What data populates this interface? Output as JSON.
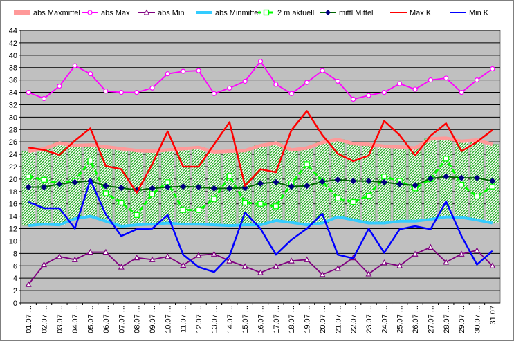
{
  "chart_data": {
    "type": "line",
    "categories": [
      "01.07",
      "02.07",
      "03.07",
      "04.07",
      "05.07",
      "06.07",
      "07.07",
      "08.07",
      "09.07",
      "10.07",
      "11.07",
      "12.07",
      "13.07",
      "14.07",
      "15.07",
      "16.07",
      "17.07",
      "18.07",
      "19.07",
      "20.07",
      "21.07",
      "22.07",
      "23.07",
      "24.07",
      "25.07",
      "26.07",
      "27.07",
      "28.07",
      "29.07",
      "30.07",
      "31.07"
    ],
    "x_tick_labels": [
      "01.07 ...",
      "02.07 ...",
      "03.07 ...",
      "04.07 ...",
      "05.07 ...",
      "06.07 ...",
      "07.07 ...",
      "08.07 ...",
      "09.07 ...",
      "10.07 ...",
      "11.07 ...",
      "12.07 ...",
      "13.07 ...",
      "14.07 ...",
      "15.07 ...",
      "16.07 ...",
      "17.07 ...",
      "18.07 ...",
      "19.07 ...",
      "20.07 ...",
      "21.07 ...",
      "22.07 ...",
      "23.07 ...",
      "24.07 ...",
      "25.07 ...",
      "26.07 ...",
      "27.07 ...",
      "28.07 ...",
      "29.07 ...",
      "30.07 ...",
      "31.07"
    ],
    "ylim": [
      0,
      44
    ],
    "y_ticks": [
      0,
      2,
      4,
      6,
      8,
      10,
      12,
      14,
      16,
      18,
      20,
      22,
      24,
      26,
      28,
      30,
      32,
      34,
      36,
      38,
      40,
      42,
      44
    ],
    "grid": true,
    "legend_position": "top",
    "series": [
      {
        "name": "abs Maxmittel",
        "color": "#ff9999",
        "style": "thick-band",
        "values": [
          24.5,
          24.9,
          25.8,
          25.4,
          25.5,
          25.2,
          24.9,
          24.6,
          24.5,
          24.7,
          24.9,
          25.1,
          24.4,
          24.5,
          24.6,
          25.4,
          25.8,
          24.7,
          25.0,
          25.9,
          26.4,
          25.7,
          25.6,
          25.3,
          25.2,
          25.0,
          26.5,
          26.6,
          26.1,
          26.3,
          25.6
        ]
      },
      {
        "name": "abs Max",
        "color": "#ff00ff",
        "style": "line-circle",
        "values": [
          34.0,
          33.0,
          35.0,
          38.3,
          37.0,
          34.2,
          34.0,
          34.0,
          34.7,
          37.0,
          37.4,
          37.5,
          33.8,
          34.7,
          35.8,
          39.0,
          35.3,
          33.8,
          35.6,
          37.5,
          35.8,
          32.9,
          33.5,
          34.0,
          35.4,
          34.5,
          36.0,
          36.3,
          34.0,
          36.0,
          37.8
        ]
      },
      {
        "name": "abs Min",
        "color": "#800080",
        "style": "line-triangle",
        "values": [
          3.0,
          6.2,
          7.5,
          7.0,
          8.2,
          8.2,
          5.8,
          7.3,
          7.0,
          7.5,
          6.1,
          7.7,
          7.9,
          6.8,
          5.9,
          4.9,
          5.9,
          6.8,
          7.0,
          4.6,
          5.6,
          7.3,
          4.7,
          6.5,
          6.0,
          7.9,
          9.0,
          6.6,
          7.9,
          8.5,
          6.0
        ]
      },
      {
        "name": "abs Minmittel",
        "color": "#33ccff",
        "style": "thick-line",
        "values": [
          12.5,
          12.7,
          12.6,
          13.6,
          14.0,
          13.2,
          12.4,
          12.6,
          12.7,
          12.9,
          12.7,
          12.7,
          12.6,
          12.5,
          12.6,
          12.6,
          13.3,
          13.0,
          12.6,
          12.9,
          13.9,
          13.4,
          12.9,
          12.9,
          13.2,
          13.2,
          13.5,
          13.9,
          13.8,
          13.4,
          12.9
        ]
      },
      {
        "name": "2 m aktuell",
        "color": "#00ff00",
        "style": "dashed-square",
        "values": [
          20.4,
          19.9,
          19.3,
          19.7,
          23.0,
          17.7,
          16.2,
          14.2,
          17.6,
          19.5,
          15.0,
          15.0,
          16.8,
          20.5,
          16.2,
          16.0,
          15.6,
          19.3,
          22.4,
          19.6,
          16.9,
          16.3,
          17.3,
          20.4,
          19.7,
          18.5,
          20.0,
          23.3,
          19.1,
          17.2,
          18.8
        ]
      },
      {
        "name": "mittl Mittel",
        "color": "#006600",
        "marker_color": "#000080",
        "style": "line-diamond",
        "values": [
          18.7,
          18.7,
          19.2,
          19.5,
          19.7,
          18.9,
          18.6,
          18.2,
          18.5,
          18.7,
          18.8,
          18.7,
          18.5,
          18.5,
          18.6,
          19.3,
          19.5,
          18.8,
          18.9,
          19.6,
          19.9,
          19.7,
          19.7,
          19.5,
          19.2,
          19.0,
          20.1,
          20.4,
          20.2,
          20.2,
          19.7
        ]
      },
      {
        "name": "Max K",
        "color": "#ff0000",
        "style": "line",
        "values": [
          25.1,
          24.7,
          23.9,
          26.2,
          28.2,
          22.1,
          21.6,
          17.8,
          22.4,
          27.7,
          22.0,
          22.0,
          25.6,
          29.2,
          18.9,
          21.6,
          21.1,
          27.9,
          31.0,
          27.1,
          24.1,
          22.9,
          23.8,
          29.4,
          27.1,
          23.8,
          27.0,
          29.0,
          24.5,
          26.0,
          27.9
        ]
      },
      {
        "name": "Min K",
        "color": "#0000ff",
        "style": "line",
        "values": [
          16.3,
          15.3,
          15.3,
          12.0,
          19.9,
          14.3,
          10.8,
          11.9,
          12.0,
          14.2,
          7.8,
          5.8,
          5.0,
          7.6,
          14.6,
          12.0,
          7.8,
          10.2,
          12.0,
          14.4,
          7.8,
          7.2,
          12.0,
          8.1,
          11.9,
          12.4,
          11.9,
          16.4,
          10.8,
          6.2,
          8.4
        ]
      }
    ]
  }
}
